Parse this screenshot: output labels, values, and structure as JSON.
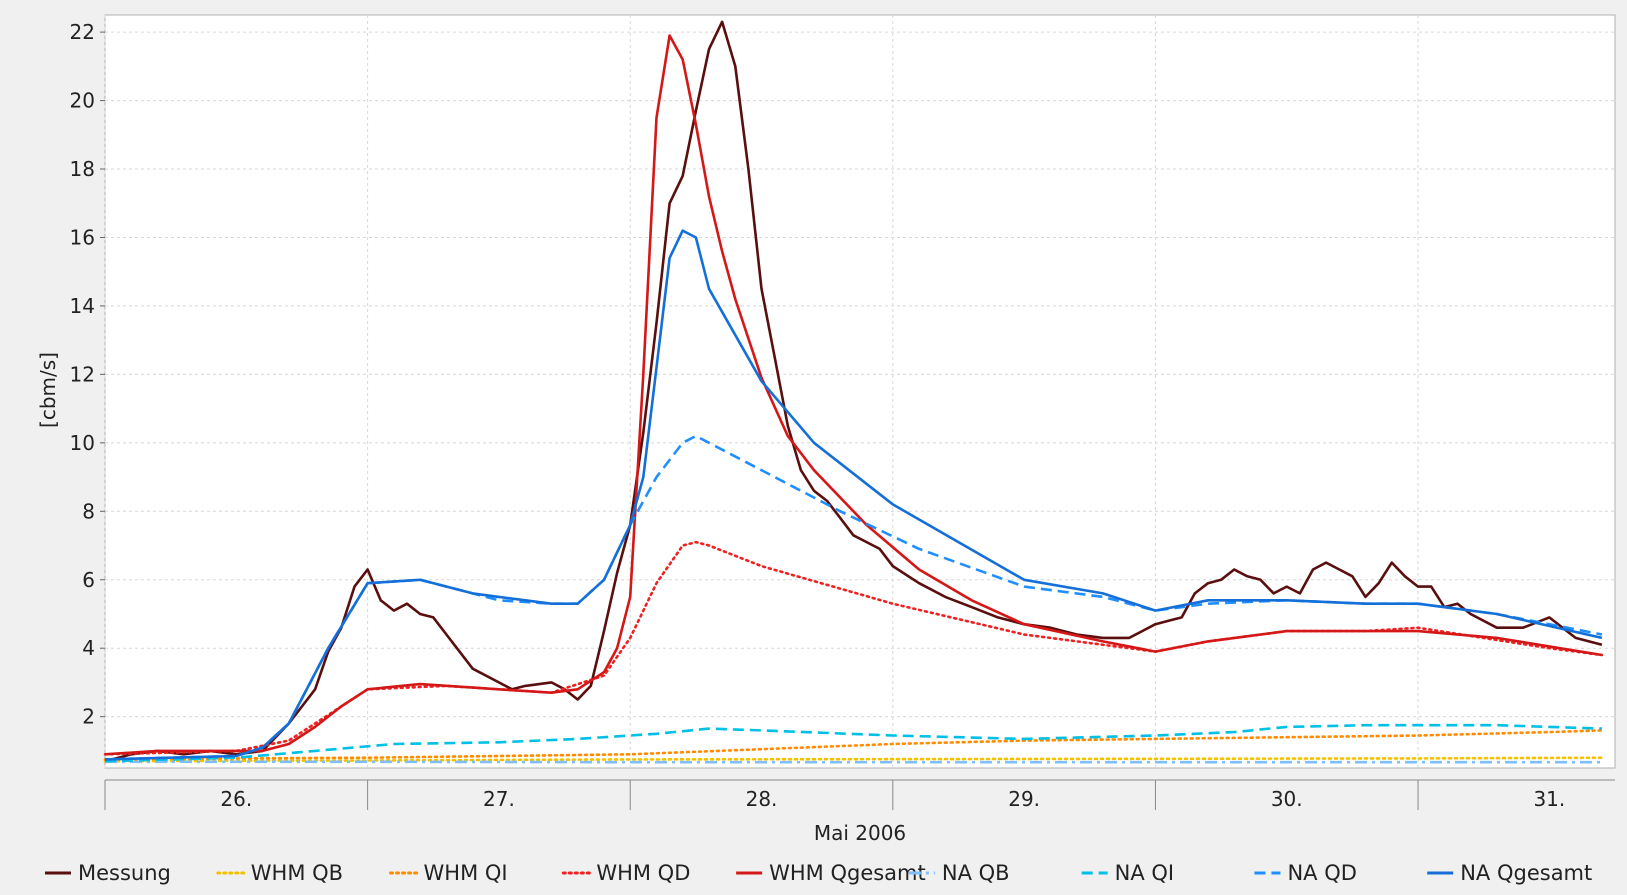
{
  "chart_data": {
    "type": "line",
    "title": "",
    "xlabel": "Mai 2006",
    "ylabel": "[cbm/s]",
    "x_unit": "day of May 2006 (fractional)",
    "xlim": [
      25.5,
      31.25
    ],
    "ylim": [
      0.5,
      22.5
    ],
    "x_ticks": [
      26,
      27,
      28,
      29,
      30,
      31
    ],
    "x_tick_labels": [
      "26.",
      "27.",
      "28.",
      "29.",
      "30.",
      "31."
    ],
    "y_ticks": [
      2,
      4,
      6,
      8,
      10,
      12,
      14,
      16,
      18,
      20,
      22
    ],
    "grid": true,
    "legend_position": "bottom",
    "series": [
      {
        "name": "Messung",
        "color": "#5a0f0f",
        "style": "solid",
        "x": [
          25.5,
          25.6,
          25.7,
          25.8,
          25.9,
          26.0,
          26.1,
          26.2,
          26.3,
          26.35,
          26.4,
          26.45,
          26.5,
          26.55,
          26.6,
          26.65,
          26.7,
          26.75,
          26.8,
          26.85,
          26.9,
          27.0,
          27.05,
          27.1,
          27.2,
          27.25,
          27.3,
          27.35,
          27.4,
          27.45,
          27.5,
          27.55,
          27.6,
          27.65,
          27.7,
          27.75,
          27.8,
          27.85,
          27.9,
          27.95,
          28.0,
          28.05,
          28.1,
          28.15,
          28.2,
          28.25,
          28.3,
          28.35,
          28.4,
          28.45,
          28.5,
          28.6,
          28.7,
          28.8,
          28.9,
          29.0,
          29.1,
          29.2,
          29.3,
          29.4,
          29.5,
          29.55,
          29.6,
          29.65,
          29.7,
          29.75,
          29.8,
          29.85,
          29.9,
          29.95,
          30.0,
          30.05,
          30.1,
          30.15,
          30.2,
          30.25,
          30.3,
          30.35,
          30.4,
          30.45,
          30.5,
          30.55,
          30.6,
          30.65,
          30.7,
          30.8,
          30.9,
          31.0,
          31.1,
          31.2
        ],
        "values": [
          0.7,
          0.9,
          1.0,
          0.9,
          1.0,
          0.9,
          1.0,
          1.8,
          2.8,
          3.9,
          4.6,
          5.8,
          6.3,
          5.4,
          5.1,
          5.3,
          5.0,
          4.9,
          4.4,
          3.9,
          3.4,
          3.0,
          2.8,
          2.9,
          3.0,
          2.8,
          2.5,
          2.9,
          4.5,
          6.2,
          7.6,
          10.3,
          13.5,
          17.0,
          17.8,
          19.7,
          21.5,
          22.3,
          21.0,
          18.0,
          14.5,
          12.5,
          10.5,
          9.2,
          8.6,
          8.3,
          7.8,
          7.3,
          7.1,
          6.9,
          6.4,
          5.9,
          5.5,
          5.2,
          4.9,
          4.7,
          4.6,
          4.4,
          4.3,
          4.3,
          4.7,
          4.8,
          4.9,
          5.6,
          5.9,
          6.0,
          6.3,
          6.1,
          6.0,
          5.6,
          5.8,
          5.6,
          6.3,
          6.5,
          6.3,
          6.1,
          5.5,
          5.9,
          6.5,
          6.1,
          5.8,
          5.8,
          5.2,
          5.3,
          5.0,
          4.6,
          4.6,
          4.9,
          4.3,
          4.1
        ]
      },
      {
        "name": "WHM QB",
        "color": "#f2c200",
        "style": "dotted",
        "x": [
          25.5,
          26.5,
          27.5,
          28.5,
          29.5,
          30.5,
          31.2
        ],
        "values": [
          0.7,
          0.72,
          0.75,
          0.76,
          0.77,
          0.78,
          0.8
        ]
      },
      {
        "name": "WHM QI",
        "color": "#ff8c00",
        "style": "dotted",
        "x": [
          25.5,
          26.0,
          26.5,
          27.0,
          27.5,
          28.0,
          28.5,
          29.0,
          29.5,
          30.0,
          30.5,
          31.0,
          31.2
        ],
        "values": [
          0.75,
          0.78,
          0.8,
          0.85,
          0.9,
          1.05,
          1.2,
          1.3,
          1.35,
          1.4,
          1.45,
          1.55,
          1.6
        ]
      },
      {
        "name": "WHM QD",
        "color": "#ee2222",
        "style": "dotted",
        "x": [
          25.5,
          26.0,
          26.2,
          26.5,
          26.8,
          27.2,
          27.4,
          27.5,
          27.6,
          27.7,
          27.75,
          27.8,
          28.0,
          28.5,
          29.0,
          29.5,
          29.7,
          30.0,
          30.3,
          30.5,
          31.0,
          31.2
        ],
        "values": [
          0.9,
          1.0,
          1.3,
          2.8,
          2.9,
          2.7,
          3.2,
          4.3,
          5.9,
          7.0,
          7.1,
          7.0,
          6.4,
          5.3,
          4.4,
          3.9,
          4.2,
          4.5,
          4.5,
          4.6,
          4.0,
          3.8
        ]
      },
      {
        "name": "WHM Qgesamt",
        "color": "#d41818",
        "style": "solid",
        "x": [
          25.5,
          25.7,
          26.0,
          26.1,
          26.2,
          26.3,
          26.4,
          26.5,
          26.7,
          26.9,
          27.0,
          27.2,
          27.3,
          27.4,
          27.45,
          27.5,
          27.55,
          27.6,
          27.65,
          27.7,
          27.75,
          27.8,
          27.85,
          27.9,
          28.0,
          28.1,
          28.2,
          28.4,
          28.6,
          28.8,
          29.0,
          29.3,
          29.5,
          29.7,
          30.0,
          30.3,
          30.5,
          30.8,
          31.2
        ],
        "values": [
          0.9,
          1.0,
          1.0,
          1.0,
          1.2,
          1.7,
          2.3,
          2.8,
          2.95,
          2.85,
          2.8,
          2.7,
          2.8,
          3.3,
          4.0,
          5.5,
          12.0,
          19.5,
          21.9,
          21.2,
          19.3,
          17.2,
          15.6,
          14.2,
          11.9,
          10.2,
          9.2,
          7.6,
          6.3,
          5.4,
          4.7,
          4.2,
          3.9,
          4.2,
          4.5,
          4.5,
          4.5,
          4.3,
          3.8
        ]
      },
      {
        "name": "NA QB",
        "color": "#7fbfff",
        "style": "dashdot",
        "x": [
          25.5,
          26.5,
          27.5,
          28.5,
          29.5,
          30.5,
          31.2
        ],
        "values": [
          0.68,
          0.68,
          0.67,
          0.67,
          0.67,
          0.67,
          0.67
        ]
      },
      {
        "name": "NA QI",
        "color": "#00c0e8",
        "style": "dashed",
        "x": [
          25.5,
          26.0,
          26.3,
          26.6,
          27.0,
          27.3,
          27.6,
          27.8,
          28.0,
          28.5,
          29.0,
          29.5,
          29.8,
          30.0,
          30.3,
          30.5,
          30.8,
          31.0,
          31.2
        ],
        "values": [
          0.7,
          0.8,
          1.0,
          1.2,
          1.25,
          1.35,
          1.5,
          1.65,
          1.6,
          1.45,
          1.35,
          1.45,
          1.55,
          1.7,
          1.75,
          1.75,
          1.75,
          1.7,
          1.65
        ]
      },
      {
        "name": "NA QD",
        "color": "#1f8fff",
        "style": "dashed",
        "x": [
          25.5,
          26.0,
          26.1,
          26.2,
          26.35,
          26.5,
          26.7,
          26.9,
          27.0,
          27.2,
          27.3,
          27.4,
          27.5,
          27.6,
          27.7,
          27.75,
          27.8,
          28.0,
          28.3,
          28.6,
          29.0,
          29.3,
          29.5,
          29.7,
          30.0,
          30.3,
          30.5,
          30.8,
          31.2
        ],
        "values": [
          0.75,
          0.85,
          1.1,
          1.8,
          4.0,
          5.9,
          6.0,
          5.6,
          5.4,
          5.3,
          5.3,
          6.0,
          7.6,
          9.0,
          10.0,
          10.2,
          10.0,
          9.2,
          8.0,
          6.9,
          5.8,
          5.5,
          5.1,
          5.3,
          5.4,
          5.3,
          5.3,
          5.0,
          4.4
        ]
      },
      {
        "name": "NA Qgesamt",
        "color": "#1470d8",
        "style": "solid",
        "x": [
          25.5,
          26.0,
          26.1,
          26.2,
          26.35,
          26.5,
          26.7,
          26.9,
          27.0,
          27.2,
          27.3,
          27.4,
          27.5,
          27.55,
          27.6,
          27.65,
          27.7,
          27.75,
          27.8,
          28.0,
          28.2,
          28.5,
          29.0,
          29.3,
          29.5,
          29.7,
          30.0,
          30.3,
          30.5,
          30.8,
          31.2
        ],
        "values": [
          0.75,
          0.85,
          1.1,
          1.8,
          4.0,
          5.9,
          6.0,
          5.6,
          5.5,
          5.3,
          5.3,
          6.0,
          7.6,
          9.0,
          12.2,
          15.4,
          16.2,
          16.0,
          14.5,
          11.8,
          10.0,
          8.2,
          6.0,
          5.6,
          5.1,
          5.4,
          5.4,
          5.3,
          5.3,
          5.0,
          4.3
        ]
      }
    ]
  }
}
